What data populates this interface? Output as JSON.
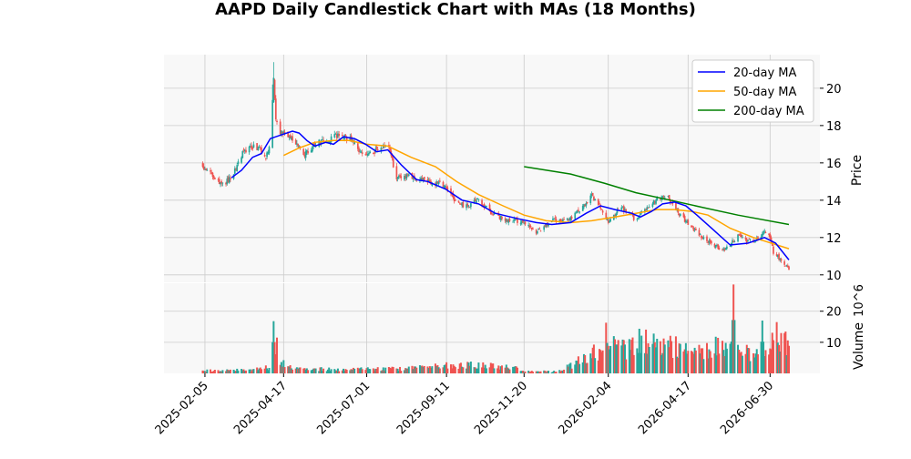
{
  "chart_data": {
    "type": "candlestick",
    "title": "AAPD Daily Candlestick Chart with MAs (18 Months)",
    "price_axis": {
      "label": "Price",
      "ticks": [
        10,
        12,
        14,
        16,
        18,
        20
      ],
      "ylim": [
        9.6,
        21.8
      ],
      "side": "right"
    },
    "volume_axis": {
      "label": "Volume",
      "multiplier": "10^6",
      "ticks": [
        10,
        20
      ],
      "tick_labels": [
        "10",
        "20"
      ],
      "ylim": [
        0,
        29
      ],
      "side": "right"
    },
    "x_axis": {
      "date_range": [
        "2025-01-27",
        "2026-07-17"
      ],
      "ticks": [
        "2025-02-05",
        "2025-04-17",
        "2025-07-01",
        "2025-09-11",
        "2025-11-20",
        "2026-02-04",
        "2026-04-17",
        "2026-06-30"
      ]
    },
    "grid": true,
    "legend": {
      "placement": "top-right",
      "entries": [
        {
          "label": "20-day MA",
          "color": "#0000ff"
        },
        {
          "label": "50-day MA",
          "color": "#ffa500"
        },
        {
          "label": "200-day MA",
          "color": "#008000"
        }
      ]
    },
    "colors": {
      "up": "#26a69a",
      "down": "#ef5350",
      "ma20": "#0000ff",
      "ma50": "#ffa500",
      "ma200": "#008000",
      "panel_bg": "#f8f8f8",
      "grid": "#cccccc"
    },
    "price_path": [
      [
        "2025-02-01",
        15.9
      ],
      [
        "2025-02-10",
        15.4
      ],
      [
        "2025-02-20",
        14.8
      ],
      [
        "2025-03-01",
        15.2
      ],
      [
        "2025-03-12",
        16.6
      ],
      [
        "2025-03-22",
        16.9
      ],
      [
        "2025-04-01",
        16.4
      ],
      [
        "2025-04-05",
        16.9
      ],
      [
        "2025-04-08",
        20.5
      ],
      [
        "2025-04-10",
        18.3
      ],
      [
        "2025-04-14",
        17.6
      ],
      [
        "2025-04-24",
        17.4
      ],
      [
        "2025-05-05",
        16.4
      ],
      [
        "2025-05-15",
        17.0
      ],
      [
        "2025-05-25",
        17.2
      ],
      [
        "2025-06-05",
        17.5
      ],
      [
        "2025-06-15",
        17.3
      ],
      [
        "2025-06-25",
        16.6
      ],
      [
        "2025-07-05",
        16.5
      ],
      [
        "2025-07-15",
        16.8
      ],
      [
        "2025-07-20",
        17.0
      ],
      [
        "2025-07-28",
        15.2
      ],
      [
        "2025-08-10",
        15.3
      ],
      [
        "2025-08-25",
        15.0
      ],
      [
        "2025-09-10",
        14.8
      ],
      [
        "2025-09-20",
        13.8
      ],
      [
        "2025-10-01",
        13.7
      ],
      [
        "2025-10-10",
        14.0
      ],
      [
        "2025-10-20",
        13.4
      ],
      [
        "2025-11-01",
        13.0
      ],
      [
        "2025-11-10",
        12.9
      ],
      [
        "2025-11-20",
        12.8
      ],
      [
        "2025-12-01",
        12.3
      ],
      [
        "2025-12-15",
        12.9
      ],
      [
        "2026-01-01",
        13.0
      ],
      [
        "2026-01-12",
        13.6
      ],
      [
        "2026-01-20",
        14.2
      ],
      [
        "2026-01-28",
        13.6
      ],
      [
        "2026-02-05",
        12.8
      ],
      [
        "2026-02-15",
        13.6
      ],
      [
        "2026-02-28",
        13.0
      ],
      [
        "2026-03-10",
        13.5
      ],
      [
        "2026-03-20",
        14.0
      ],
      [
        "2026-03-30",
        14.2
      ],
      [
        "2026-04-10",
        13.2
      ],
      [
        "2026-04-20",
        12.6
      ],
      [
        "2026-04-30",
        12.0
      ],
      [
        "2026-05-10",
        11.6
      ],
      [
        "2026-05-20",
        11.3
      ],
      [
        "2026-06-01",
        12.1
      ],
      [
        "2026-06-10",
        11.8
      ],
      [
        "2026-06-20",
        12.0
      ],
      [
        "2026-06-28",
        12.5
      ],
      [
        "2026-07-03",
        11.2
      ],
      [
        "2026-07-10",
        10.8
      ],
      [
        "2026-07-17",
        10.3
      ]
    ],
    "ma20": [
      [
        "2025-03-01",
        15.2
      ],
      [
        "2025-03-10",
        15.6
      ],
      [
        "2025-03-20",
        16.3
      ],
      [
        "2025-03-28",
        16.5
      ],
      [
        "2025-04-05",
        17.3
      ],
      [
        "2025-04-15",
        17.5
      ],
      [
        "2025-04-25",
        17.7
      ],
      [
        "2025-05-01",
        17.6
      ],
      [
        "2025-05-08",
        17.2
      ],
      [
        "2025-05-15",
        16.9
      ],
      [
        "2025-05-25",
        17.1
      ],
      [
        "2025-06-01",
        17.0
      ],
      [
        "2025-06-10",
        17.4
      ],
      [
        "2025-06-20",
        17.3
      ],
      [
        "2025-06-30",
        17.0
      ],
      [
        "2025-07-10",
        16.6
      ],
      [
        "2025-07-20",
        16.7
      ],
      [
        "2025-08-01",
        15.9
      ],
      [
        "2025-08-15",
        15.1
      ],
      [
        "2025-08-25",
        15.0
      ],
      [
        "2025-09-10",
        14.6
      ],
      [
        "2025-09-25",
        14.0
      ],
      [
        "2025-10-10",
        13.8
      ],
      [
        "2025-10-25",
        13.3
      ],
      [
        "2025-11-15",
        13.0
      ],
      [
        "2025-12-01",
        12.8
      ],
      [
        "2025-12-15",
        12.7
      ],
      [
        "2026-01-01",
        12.8
      ],
      [
        "2026-01-15",
        13.3
      ],
      [
        "2026-01-28",
        13.7
      ],
      [
        "2026-02-10",
        13.5
      ],
      [
        "2026-02-25",
        13.3
      ],
      [
        "2026-03-05",
        13.1
      ],
      [
        "2026-03-15",
        13.4
      ],
      [
        "2026-03-25",
        13.8
      ],
      [
        "2026-04-05",
        13.9
      ],
      [
        "2026-04-15",
        13.7
      ],
      [
        "2026-04-25",
        13.2
      ],
      [
        "2026-05-10",
        12.4
      ],
      [
        "2026-05-25",
        11.6
      ],
      [
        "2026-06-10",
        11.7
      ],
      [
        "2026-06-25",
        12.0
      ],
      [
        "2026-07-05",
        11.7
      ],
      [
        "2026-07-17",
        10.8
      ]
    ],
    "ma50": [
      [
        "2025-04-17",
        16.4
      ],
      [
        "2025-05-01",
        16.8
      ],
      [
        "2025-05-15",
        17.1
      ],
      [
        "2025-06-01",
        17.2
      ],
      [
        "2025-06-15",
        17.2
      ],
      [
        "2025-07-01",
        17.0
      ],
      [
        "2025-07-20",
        16.9
      ],
      [
        "2025-08-10",
        16.3
      ],
      [
        "2025-09-01",
        15.8
      ],
      [
        "2025-09-20",
        15.0
      ],
      [
        "2025-10-10",
        14.3
      ],
      [
        "2025-11-01",
        13.7
      ],
      [
        "2025-11-20",
        13.2
      ],
      [
        "2025-12-10",
        12.9
      ],
      [
        "2026-01-01",
        12.8
      ],
      [
        "2026-01-20",
        12.9
      ],
      [
        "2026-02-10",
        13.1
      ],
      [
        "2026-03-01",
        13.3
      ],
      [
        "2026-03-20",
        13.5
      ],
      [
        "2026-04-05",
        13.5
      ],
      [
        "2026-04-20",
        13.4
      ],
      [
        "2026-05-05",
        13.2
      ],
      [
        "2026-05-25",
        12.5
      ],
      [
        "2026-06-15",
        12.0
      ],
      [
        "2026-07-17",
        11.4
      ]
    ],
    "ma200": [
      [
        "2025-11-20",
        15.8
      ],
      [
        "2026-01-01",
        15.4
      ],
      [
        "2026-02-01",
        14.9
      ],
      [
        "2026-03-01",
        14.4
      ],
      [
        "2026-04-01",
        14.0
      ],
      [
        "2026-05-01",
        13.6
      ],
      [
        "2026-06-01",
        13.2
      ],
      [
        "2026-07-17",
        12.7
      ]
    ],
    "volume_path": [
      [
        "2025-01-27",
        0.8
      ],
      [
        "2025-03-20",
        1.2
      ],
      [
        "2025-04-05",
        2.0
      ],
      [
        "2025-04-08",
        14.5
      ],
      [
        "2025-04-14",
        3.5
      ],
      [
        "2025-04-25",
        1.6
      ],
      [
        "2025-06-01",
        1.3
      ],
      [
        "2025-08-01",
        1.5
      ],
      [
        "2025-09-10",
        2.5
      ],
      [
        "2025-10-01",
        2.8
      ],
      [
        "2025-11-10",
        2.0
      ],
      [
        "2025-11-20",
        0.8
      ],
      [
        "2025-12-20",
        0.6
      ],
      [
        "2026-01-01",
        2.5
      ],
      [
        "2026-01-20",
        6.0
      ],
      [
        "2026-02-05",
        10.0
      ],
      [
        "2026-02-20",
        7.5
      ],
      [
        "2026-03-10",
        11.5
      ],
      [
        "2026-03-25",
        10.0
      ],
      [
        "2026-04-15",
        7.0
      ],
      [
        "2026-05-05",
        8.5
      ],
      [
        "2026-05-20",
        9.0
      ],
      [
        "2026-06-10",
        7.0
      ],
      [
        "2026-06-25",
        8.0
      ],
      [
        "2026-07-10",
        12.0
      ],
      [
        "2026-07-17",
        8.0
      ]
    ],
    "volume_spikes": [
      [
        "2025-04-08",
        16.8
      ],
      [
        "2026-02-02",
        16.3
      ],
      [
        "2026-03-15",
        15.8
      ],
      [
        "2026-05-28",
        28.6
      ],
      [
        "2026-06-23",
        17.0
      ],
      [
        "2026-07-06",
        16.5
      ]
    ]
  }
}
